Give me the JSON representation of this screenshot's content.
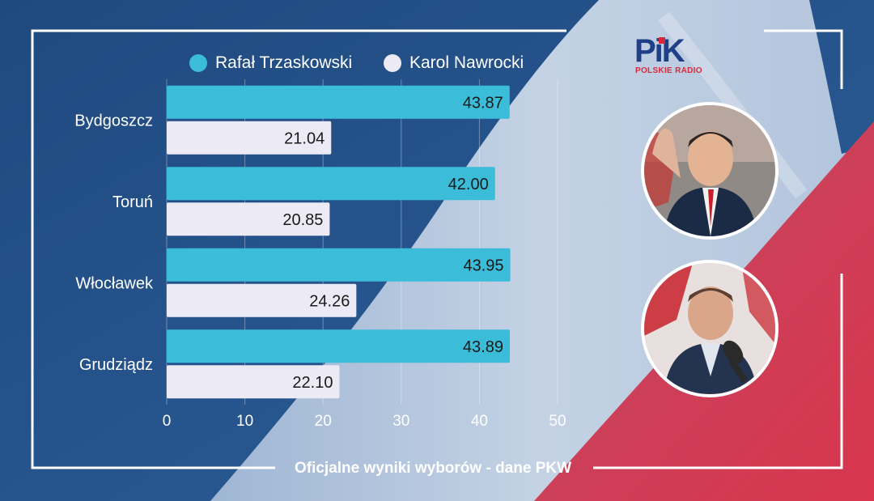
{
  "legend": [
    {
      "label": "Rafał Trzaskowski",
      "color": "#3bbcd8"
    },
    {
      "label": "Karol Nawrocki",
      "color": "#eceaf4"
    }
  ],
  "chart_data": {
    "type": "bar",
    "orientation": "horizontal",
    "categories": [
      "Bydgoszcz",
      "Toruń",
      "Włocławek",
      "Grudziądz"
    ],
    "series": [
      {
        "name": "Rafał Trzaskowski",
        "color": "#3bbcd8",
        "values": [
          43.87,
          42.0,
          43.95,
          43.89
        ],
        "labels": [
          "43.87",
          "42.00",
          "43.95",
          "43.89"
        ]
      },
      {
        "name": "Karol Nawrocki",
        "color": "#eceaf4",
        "values": [
          21.04,
          20.85,
          24.26,
          22.1
        ],
        "labels": [
          "21.04",
          "20.85",
          "24.26",
          "22.10"
        ]
      }
    ],
    "xlim": [
      0,
      50
    ],
    "xticks": [
      "0",
      "10",
      "20",
      "30",
      "40",
      "50"
    ],
    "grid": true,
    "legend_position": "top"
  },
  "logo": {
    "text": "PiK",
    "subtitle": "POLSKIE RADIO"
  },
  "portraits": [
    {
      "icon": "person-photo-trzaskowski"
    },
    {
      "icon": "person-photo-nawrocki"
    }
  ],
  "caption": "Oficjalne wyniki wyborów - dane PKW"
}
